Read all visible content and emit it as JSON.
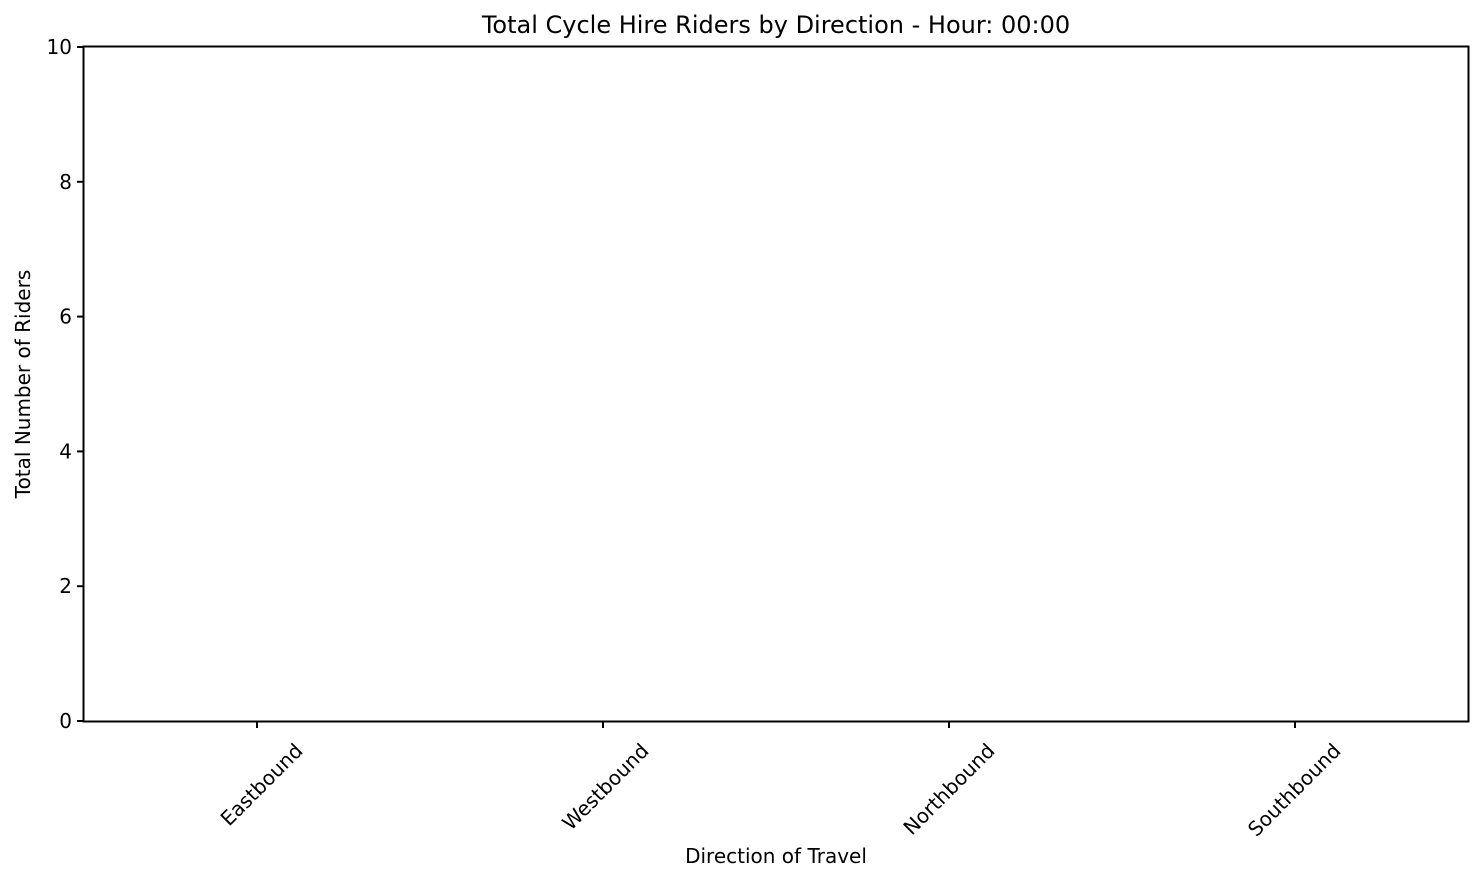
{
  "chart_data": {
    "type": "bar",
    "title": "Total Cycle Hire Riders by Direction - Hour: 00:00",
    "xlabel": "Direction of Travel",
    "ylabel": "Total Number of Riders",
    "categories": [
      "Eastbound",
      "Westbound",
      "Northbound",
      "Southbound"
    ],
    "values": [
      0,
      0,
      0,
      0
    ],
    "ylim": [
      0,
      10
    ],
    "yticks": [
      "0",
      "2",
      "4",
      "6",
      "8",
      "10"
    ],
    "grid": false,
    "x_tick_rotation_deg": 45
  }
}
